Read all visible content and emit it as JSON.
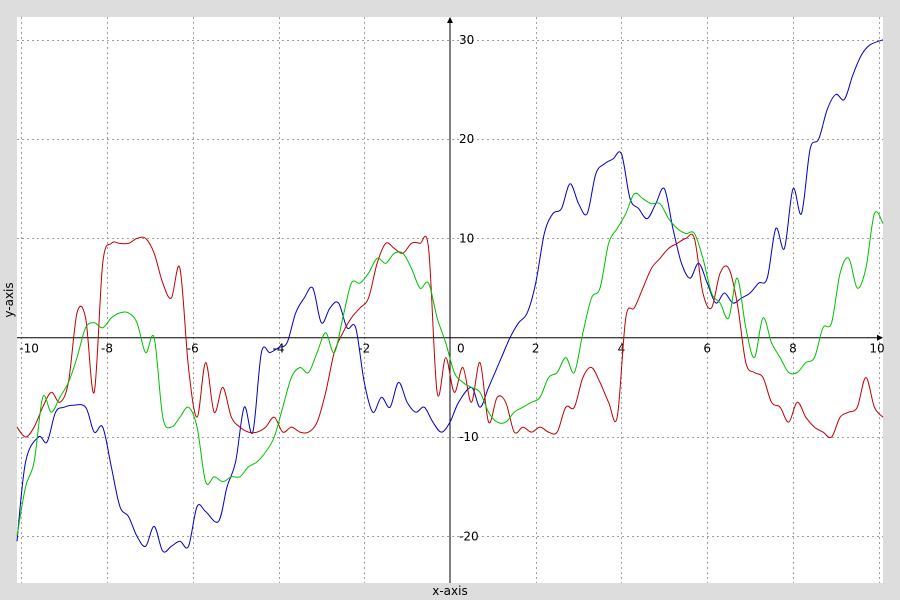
{
  "chart_data": {
    "type": "line",
    "title": "",
    "xlabel": "x-axis",
    "ylabel": "y-axis",
    "xlim": [
      -10.1,
      10.1
    ],
    "ylim": [
      -24.7,
      32.3
    ],
    "grid": true,
    "x_ticks": [
      {
        "value": -10,
        "label": "-10"
      },
      {
        "value": -8,
        "label": "-8"
      },
      {
        "value": -6,
        "label": "-6"
      },
      {
        "value": -4,
        "label": "-4"
      },
      {
        "value": -2,
        "label": "-2"
      },
      {
        "value": 0,
        "label": "0"
      },
      {
        "value": 2,
        "label": "2"
      },
      {
        "value": 4,
        "label": "4"
      },
      {
        "value": 6,
        "label": "6"
      },
      {
        "value": 8,
        "label": "8"
      },
      {
        "value": 10,
        "label": "10"
      }
    ],
    "y_ticks": [
      {
        "value": -20,
        "label": "-20"
      },
      {
        "value": -10,
        "label": "-10"
      },
      {
        "value": 10,
        "label": "10"
      },
      {
        "value": 20,
        "label": "20"
      },
      {
        "value": 30,
        "label": "30"
      }
    ],
    "colors": {
      "background": "#ffffff",
      "frame": "#dddddd",
      "grid": "#a0a0a0",
      "axis": "#000000"
    },
    "series": [
      {
        "color": "#0000c0",
        "x": [
          -10.1,
          -9.9,
          -9.6,
          -9.4,
          -9.2,
          -9.0,
          -8.8,
          -8.5,
          -8.3,
          -8.1,
          -7.9,
          -7.7,
          -7.5,
          -7.3,
          -7.1,
          -6.9,
          -6.7,
          -6.5,
          -6.3,
          -6.1,
          -5.9,
          -5.7,
          -5.4,
          -5.2,
          -5.0,
          -4.8,
          -4.6,
          -4.4,
          -4.2,
          -4.0,
          -3.8,
          -3.6,
          -3.4,
          -3.2,
          -3.0,
          -2.8,
          -2.6,
          -2.4,
          -2.2,
          -2.0,
          -1.8,
          -1.6,
          -1.4,
          -1.2,
          -1.0,
          -0.8,
          -0.6,
          -0.4,
          -0.2,
          0.0,
          0.2,
          0.5,
          0.7,
          0.9,
          1.2,
          1.4,
          1.6,
          1.8,
          2.0,
          2.2,
          2.4,
          2.6,
          2.8,
          3.0,
          3.2,
          3.4,
          3.6,
          3.8,
          4.0,
          4.2,
          4.4,
          4.6,
          4.8,
          5.0,
          5.2,
          5.4,
          5.6,
          5.8,
          6.0,
          6.2,
          6.4,
          6.6,
          6.8,
          7.0,
          7.2,
          7.4,
          7.6,
          7.8,
          8.0,
          8.2,
          8.4,
          8.6,
          8.8,
          9.0,
          9.2,
          9.4,
          9.6,
          9.8,
          10.1
        ],
        "y": [
          -20.5,
          -12.5,
          -10.0,
          -10.5,
          -7.5,
          -7.0,
          -6.8,
          -7.0,
          -9.5,
          -9.0,
          -13.0,
          -17.0,
          -18.0,
          -20.0,
          -21.0,
          -19.0,
          -21.5,
          -21.0,
          -20.5,
          -21.0,
          -17.0,
          -17.5,
          -18.5,
          -15.0,
          -12.5,
          -7.0,
          -9.5,
          -1.5,
          -1.5,
          -1.0,
          -0.5,
          2.5,
          4.0,
          5.0,
          1.5,
          3.0,
          3.5,
          1.0,
          1.0,
          -4.5,
          -7.5,
          -6.0,
          -7.0,
          -4.5,
          -6.5,
          -7.5,
          -7.0,
          -8.5,
          -9.5,
          -8.5,
          -6.5,
          -5.0,
          -7.0,
          -5.0,
          -2.0,
          0.0,
          1.5,
          2.5,
          5.5,
          10.5,
          12.5,
          13.0,
          15.5,
          13.5,
          12.5,
          16.5,
          17.5,
          18.0,
          18.5,
          14.0,
          13.0,
          12.0,
          13.5,
          15.0,
          11.0,
          7.5,
          6.0,
          7.5,
          5.5,
          3.5,
          4.5,
          3.5,
          4.0,
          4.5,
          5.5,
          6.0,
          11.0,
          9.0,
          15.0,
          12.5,
          19.0,
          20.0,
          23.0,
          24.5,
          24.0,
          26.5,
          28.5,
          29.5,
          30.0
        ]
      },
      {
        "color": "#c00000",
        "x": [
          -10.1,
          -9.9,
          -9.7,
          -9.5,
          -9.3,
          -9.1,
          -8.9,
          -8.7,
          -8.5,
          -8.3,
          -8.1,
          -7.9,
          -7.7,
          -7.5,
          -7.3,
          -7.1,
          -6.9,
          -6.7,
          -6.5,
          -6.3,
          -6.1,
          -5.9,
          -5.7,
          -5.5,
          -5.3,
          -5.1,
          -4.9,
          -4.7,
          -4.5,
          -4.3,
          -4.1,
          -3.9,
          -3.7,
          -3.5,
          -3.3,
          -3.1,
          -2.9,
          -2.7,
          -2.5,
          -2.3,
          -2.1,
          -1.9,
          -1.7,
          -1.5,
          -1.3,
          -1.1,
          -0.9,
          -0.7,
          -0.5,
          -0.3,
          -0.1,
          0.1,
          0.3,
          0.5,
          0.7,
          0.9,
          1.1,
          1.3,
          1.5,
          1.7,
          1.9,
          2.1,
          2.3,
          2.5,
          2.7,
          2.9,
          3.1,
          3.3,
          3.5,
          3.7,
          3.9,
          4.1,
          4.3,
          4.5,
          4.7,
          4.9,
          5.1,
          5.3,
          5.5,
          5.7,
          5.9,
          6.1,
          6.3,
          6.5,
          6.7,
          6.9,
          7.1,
          7.3,
          7.5,
          7.7,
          7.9,
          8.1,
          8.3,
          8.5,
          8.7,
          8.9,
          9.1,
          9.3,
          9.5,
          9.7,
          9.9,
          10.1
        ],
        "y": [
          -9.0,
          -10.0,
          -9.0,
          -7.0,
          -5.5,
          -6.5,
          -4.5,
          2.5,
          2.0,
          -5.5,
          7.5,
          9.5,
          9.5,
          9.5,
          10.0,
          10.0,
          8.5,
          5.5,
          4.0,
          7.0,
          -3.0,
          -8.0,
          -2.5,
          -7.5,
          -5.0,
          -8.0,
          -9.0,
          -9.5,
          -9.5,
          -9.0,
          -8.0,
          -9.5,
          -9.0,
          -9.5,
          -9.5,
          -8.5,
          -5.5,
          -1.5,
          0.5,
          2.0,
          3.0,
          4.0,
          7.5,
          9.5,
          9.0,
          8.5,
          9.5,
          9.5,
          9.0,
          -5.5,
          -2.0,
          -5.5,
          -3.0,
          -6.5,
          -2.5,
          -8.5,
          -6.0,
          -6.5,
          -9.5,
          -9.0,
          -9.5,
          -9.0,
          -9.5,
          -9.5,
          -7.0,
          -7.0,
          -4.0,
          -3.0,
          -4.5,
          -6.5,
          -8.0,
          2.0,
          3.0,
          5.0,
          7.0,
          8.0,
          9.0,
          9.5,
          10.0,
          10.0,
          4.5,
          3.0,
          6.5,
          7.0,
          3.5,
          -2.5,
          -3.5,
          -4.0,
          -6.5,
          -7.0,
          -8.5,
          -6.5,
          -8.0,
          -9.0,
          -9.5,
          -10.0,
          -8.0,
          -7.5,
          -7.0,
          -4.0,
          -7.0,
          -8.0
        ]
      },
      {
        "color": "#00c000",
        "x": [
          -10.1,
          -9.9,
          -9.7,
          -9.5,
          -9.3,
          -9.1,
          -8.9,
          -8.7,
          -8.5,
          -8.3,
          -8.1,
          -7.9,
          -7.7,
          -7.5,
          -7.3,
          -7.1,
          -6.9,
          -6.7,
          -6.5,
          -6.3,
          -6.1,
          -5.9,
          -5.7,
          -5.5,
          -5.3,
          -5.1,
          -4.9,
          -4.7,
          -4.5,
          -4.3,
          -4.1,
          -3.9,
          -3.7,
          -3.5,
          -3.3,
          -3.1,
          -2.9,
          -2.7,
          -2.5,
          -2.3,
          -2.1,
          -1.9,
          -1.7,
          -1.5,
          -1.3,
          -1.1,
          -0.9,
          -0.7,
          -0.5,
          -0.3,
          -0.1,
          0.1,
          0.3,
          0.5,
          0.7,
          0.9,
          1.1,
          1.3,
          1.5,
          1.7,
          1.9,
          2.1,
          2.3,
          2.5,
          2.7,
          2.9,
          3.1,
          3.3,
          3.5,
          3.7,
          3.9,
          4.1,
          4.3,
          4.5,
          4.7,
          4.9,
          5.1,
          5.3,
          5.5,
          5.7,
          5.9,
          6.1,
          6.3,
          6.5,
          6.7,
          6.9,
          7.1,
          7.3,
          7.5,
          7.7,
          7.9,
          8.1,
          8.3,
          8.5,
          8.7,
          8.9,
          9.1,
          9.3,
          9.5,
          9.7,
          9.9,
          10.1
        ],
        "y": [
          -20.0,
          -15.0,
          -12.5,
          -6.0,
          -7.5,
          -6.0,
          -4.5,
          -2.0,
          1.0,
          1.5,
          1.0,
          2.0,
          2.5,
          2.5,
          1.5,
          -1.5,
          0.0,
          -8.0,
          -9.0,
          -8.0,
          -7.0,
          -9.0,
          -14.5,
          -14.0,
          -14.5,
          -14.0,
          -14.0,
          -13.0,
          -12.5,
          -11.5,
          -10.0,
          -7.0,
          -4.0,
          -3.0,
          -3.5,
          -1.5,
          0.5,
          -1.5,
          2.0,
          5.5,
          5.5,
          6.5,
          8.0,
          7.5,
          8.5,
          8.5,
          7.0,
          5.0,
          5.5,
          2.0,
          -0.5,
          -3.5,
          -4.5,
          -5.0,
          -5.5,
          -7.5,
          -8.5,
          -8.5,
          -7.5,
          -7.0,
          -6.5,
          -6.0,
          -4.0,
          -3.5,
          -2.0,
          -3.5,
          0.5,
          4.0,
          5.0,
          9.5,
          11.0,
          12.5,
          14.5,
          14.0,
          13.5,
          13.5,
          12.0,
          11.0,
          10.5,
          10.5,
          8.0,
          4.5,
          3.5,
          2.0,
          6.0,
          1.0,
          -2.0,
          2.0,
          -0.5,
          -2.0,
          -3.5,
          -3.5,
          -2.5,
          -2.0,
          1.0,
          1.5,
          6.5,
          8.0,
          5.0,
          7.0,
          12.5,
          11.5
        ]
      }
    ]
  }
}
